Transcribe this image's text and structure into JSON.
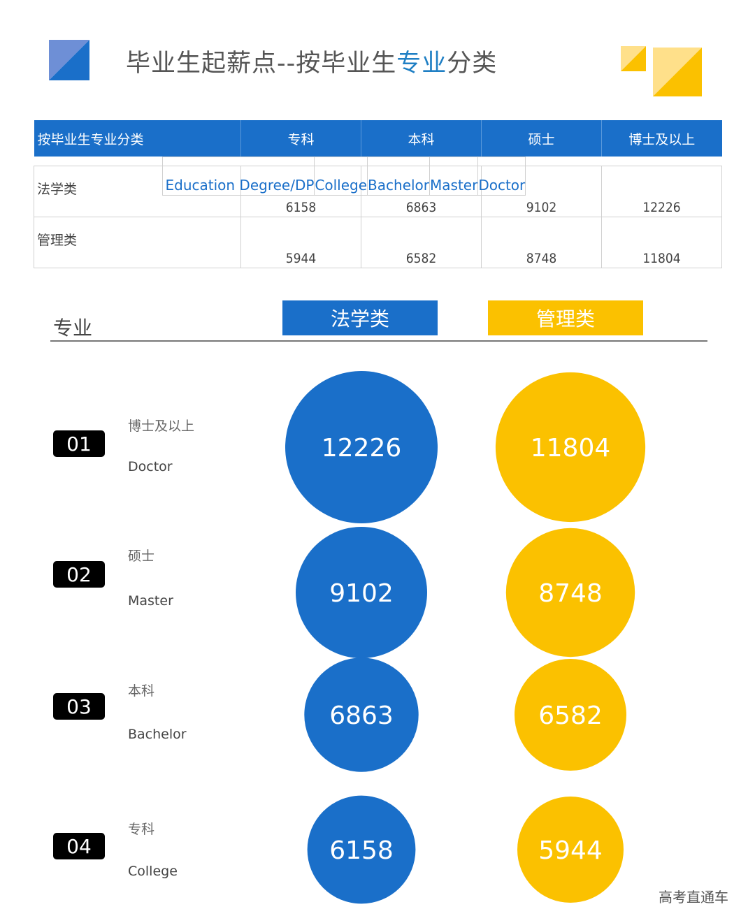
{
  "title": {
    "part1": "毕业生起薪点--按毕业生",
    "highlight": "专业",
    "part2": "分类"
  },
  "colors": {
    "law": "#1a6fc9",
    "management": "#fbc100",
    "header": "#1a6fc9"
  },
  "table": {
    "header": [
      "按毕业生专业分类",
      "专科",
      "本科",
      "硕士",
      "博士及以上"
    ],
    "english": [
      "Education  Degree/DP",
      "College",
      "Bachelor",
      "Master",
      "Doctor"
    ],
    "rows": [
      {
        "label": "法学类",
        "values": [
          "6158",
          "6863",
          "9102",
          "12226"
        ]
      },
      {
        "label": "管理类",
        "values": [
          "5944",
          "6582",
          "8748",
          "11804"
        ]
      }
    ]
  },
  "chart_data": {
    "type": "bubble",
    "column_label": "专业",
    "legend": [
      "法学类",
      "管理类"
    ],
    "categories": [
      {
        "rank": "01",
        "cn": "博士及以上",
        "en": "Doctor"
      },
      {
        "rank": "02",
        "cn": "硕士",
        "en": "Master"
      },
      {
        "rank": "03",
        "cn": "本科",
        "en": "Bachelor"
      },
      {
        "rank": "04",
        "cn": "专科",
        "en": "College"
      }
    ],
    "series": [
      {
        "name": "法学类",
        "values": [
          12226,
          9102,
          6863,
          6158
        ]
      },
      {
        "name": "管理类",
        "values": [
          11804,
          8748,
          6582,
          5944
        ]
      }
    ]
  },
  "watermark": "高考直通车"
}
